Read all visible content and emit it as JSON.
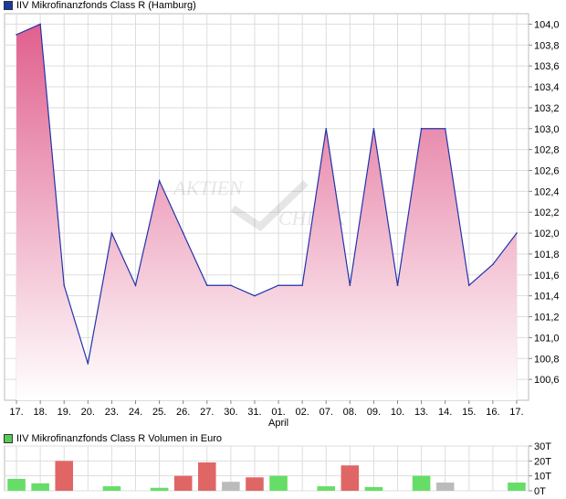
{
  "colors": {
    "price_legend": "#1a3aa0",
    "volume_legend": "#55cc55",
    "line": "#2233aa",
    "fill_top": "#e0608e",
    "fill_bottom": "#ffffff",
    "grid": "#dddddd",
    "vol_up": "#66dd66",
    "vol_down": "#e06666",
    "vol_flat": "#bbbbbb"
  },
  "chart_data": [
    {
      "type": "area",
      "title": "IIV Mikrofinanzfonds Class R (Hamburg)",
      "x": [
        "17.",
        "18.",
        "19.",
        "20.",
        "23.",
        "24.",
        "25.",
        "26.",
        "27.",
        "30.",
        "31.",
        "01.",
        "02.",
        "07.",
        "08.",
        "09.",
        "10.",
        "13.",
        "14.",
        "15.",
        "16.",
        "17."
      ],
      "month_label": "April",
      "values": [
        103.9,
        104.0,
        101.5,
        100.75,
        102.0,
        101.5,
        102.5,
        102.0,
        101.5,
        101.5,
        101.4,
        101.5,
        101.5,
        103.0,
        101.5,
        103.0,
        101.5,
        103.0,
        103.0,
        101.5,
        101.7,
        102.0
      ],
      "ylim": [
        100.4,
        104.1
      ],
      "yticks": [
        "100,6",
        "100,8",
        "101,0",
        "101,2",
        "101,4",
        "101,6",
        "101,8",
        "102,0",
        "102,2",
        "102,4",
        "102,6",
        "102,8",
        "103,0",
        "103,2",
        "103,4",
        "103,6",
        "103,8",
        "104,0"
      ],
      "ytick_values": [
        100.6,
        100.8,
        101.0,
        101.2,
        101.4,
        101.6,
        101.8,
        102.0,
        102.2,
        102.4,
        102.6,
        102.8,
        103.0,
        103.2,
        103.4,
        103.6,
        103.8,
        104.0
      ],
      "grid": true
    },
    {
      "type": "bar",
      "title": "IIV Mikrofinanzfonds Class R Volumen in Euro",
      "values": [
        8000,
        5000,
        20000,
        0,
        3000,
        0,
        2000,
        10000,
        19000,
        6000,
        9000,
        10000,
        0,
        3000,
        17000,
        2500,
        0,
        10000,
        5500,
        0,
        0,
        5500
      ],
      "direction": [
        "up",
        "up",
        "down",
        "none",
        "up",
        "none",
        "up",
        "down",
        "down",
        "flat",
        "down",
        "up",
        "none",
        "up",
        "down",
        "up",
        "none",
        "up",
        "flat",
        "none",
        "none",
        "up"
      ],
      "ylim": [
        0,
        30000
      ],
      "yticks": [
        "0T",
        "10T",
        "20T",
        "30T"
      ],
      "ytick_values": [
        0,
        10000,
        20000,
        30000
      ]
    }
  ]
}
